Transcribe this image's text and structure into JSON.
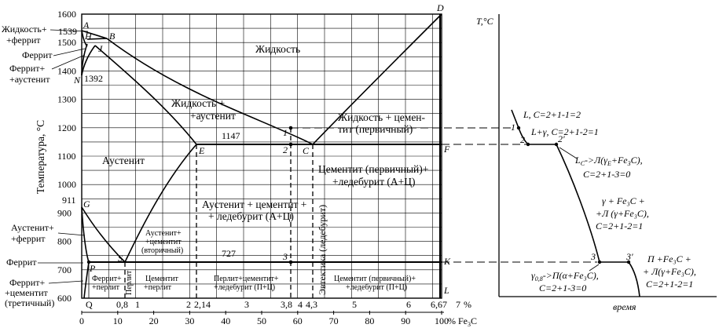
{
  "main_chart": {
    "y_axis_title": "Температура, °С",
    "y_ticks": [
      "1600",
      "1500",
      "1400",
      "1300",
      "1200",
      "1100",
      "1000",
      "900",
      "800",
      "700",
      "600"
    ],
    "special_temps": {
      "t1539": "1539",
      "t1392": "1392",
      "t911": "911",
      "t1147": "1147",
      "t727": "727"
    },
    "left_labels": {
      "liquid_ferrite_1": "Жидкость+",
      "liquid_ferrite_2": "+феррит",
      "ferrite": "Феррит",
      "ferrite_austenite_1": "Феррит+",
      "ferrite_austenite_2": "+аустенит",
      "austenite_ferrite_1": "Аустенит+",
      "austenite_ferrite_2": "+феррит",
      "ferrite_low": "Феррит",
      "ferrite_cem_1": "Феррит+",
      "ferrite_cem_2": "+цементит",
      "ferrite_cem_3": "(третичный)"
    },
    "points": {
      "A": "A",
      "H": "H",
      "B": "B",
      "J": "J",
      "N": "N",
      "D": "D",
      "E": "E",
      "C": "C",
      "F": "F",
      "G": "G",
      "S": "S",
      "K": "K",
      "P": "P",
      "Q": "Q",
      "L": "L"
    },
    "point_numbers": {
      "n1": "1",
      "n2": "2",
      "n3": "3"
    },
    "regions": {
      "liquid": "Жидкость",
      "liquid_austenite_1": "Жидкость +",
      "liquid_austenite_2": "+аустенит",
      "liquid_cementite_1": "Жидкость + цемен-",
      "liquid_cementite_2": "тит (первичный)",
      "austenite": "Аустенит",
      "aus_cem_ledeb_1": "Аустенит + цементит +",
      "aus_cem_ledeb_2": "+ ледебурит (А+Ц)",
      "cem_ledeb_1": "Цементит (первичный)+",
      "cem_ledeb_2": "+ледебурит (А+Ц)",
      "aus_sec_1": "Аустенит+",
      "aus_sec_2": "+цементит",
      "aus_sec_3": "(вторичный)",
      "eutectic": "Эвтектика (ледебурит)",
      "fer_perl_1": "Феррит+",
      "fer_perl_2": "+перлит",
      "pearlite": "Перлит",
      "cem_perl_1": "Цементит",
      "cem_perl_2": "+перлит",
      "perl_cem_led_1": "Перлит+цементит+",
      "perl_cem_led_2": "+ледебурит (П+Ц)",
      "cem_prim_led_1": "Цементит (первичный)+",
      "cem_prim_led_2": "+ледебурит (П+Ц)"
    },
    "carbon_axis": {
      "labels": [
        "Q",
        "0,8",
        "1",
        "2",
        "2,14",
        "3",
        "3,8",
        "4",
        "4,3",
        "5",
        "6",
        "6,67",
        "7"
      ],
      "unit": "%"
    },
    "fe3c_axis": {
      "labels": [
        "0",
        "10",
        "20",
        "30",
        "40",
        "50",
        "60",
        "70",
        "80",
        "90",
        "100"
      ],
      "unit": "%",
      "name": "Fe",
      "sub": "3",
      "name_end": "C"
    }
  },
  "cooling_curve": {
    "y_title": "T,°C",
    "x_title": "время",
    "annotations": {
      "a1": "L, C=2+1-1=2",
      "a2": "L+γ, C=2+1-2=1",
      "a3_1": "L",
      "a3_sub1": "C",
      "a3_2": "->Л(γ",
      "a3_sub2": "E",
      "a3_3": "+Fe",
      "a3_sub3": "3",
      "a3_4": "C),",
      "a3_5": "C=2+1-3=0",
      "a4_1": "γ + Fe₃C +",
      "a4_2": "+Л (γ+Fe₃C),",
      "a4_3": "C=2+1-2=1",
      "a5_1": "γ",
      "a5_sub": "0,8",
      "a5_2": "->П(α+Fe₃C),",
      "a5_3": "C=2+1-3=0",
      "a6_1": "П +Fe₃C +",
      "a6_2": "+ Л(γ+Fe₃C),",
      "a6_3": "C=2+1-2=1"
    },
    "points": {
      "p1": "1",
      "p2": "2",
      "p2p": "2'",
      "p3": "3",
      "p3p": "3'"
    }
  }
}
